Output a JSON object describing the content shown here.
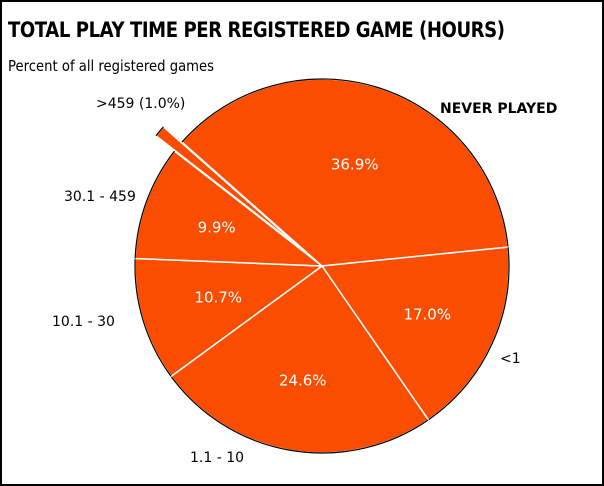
{
  "chart_data": {
    "type": "pie",
    "title": "TOTAL PLAY TIME PER REGISTERED GAME (HOURS)",
    "subtitle": "Percent of all registered games",
    "slices": [
      {
        "label": "NEVER PLAYED",
        "value": 36.9,
        "value_label": "36.9%"
      },
      {
        "label": "<1",
        "value": 17.0,
        "value_label": "17.0%"
      },
      {
        "label": "1.1 - 10",
        "value": 24.6,
        "value_label": "24.6%"
      },
      {
        "label": "10.1 - 30",
        "value": 10.7,
        "value_label": "10.7%"
      },
      {
        "label": "30.1 - 459",
        "value": 9.9,
        "value_label": "9.9%"
      },
      {
        "label": ">459 (1.0%)",
        "value": 1.0,
        "value_label": "",
        "exploded": true
      }
    ],
    "colors": {
      "slice": "#fa4d00",
      "edge": "#ffffff",
      "outline": "#000000"
    }
  }
}
